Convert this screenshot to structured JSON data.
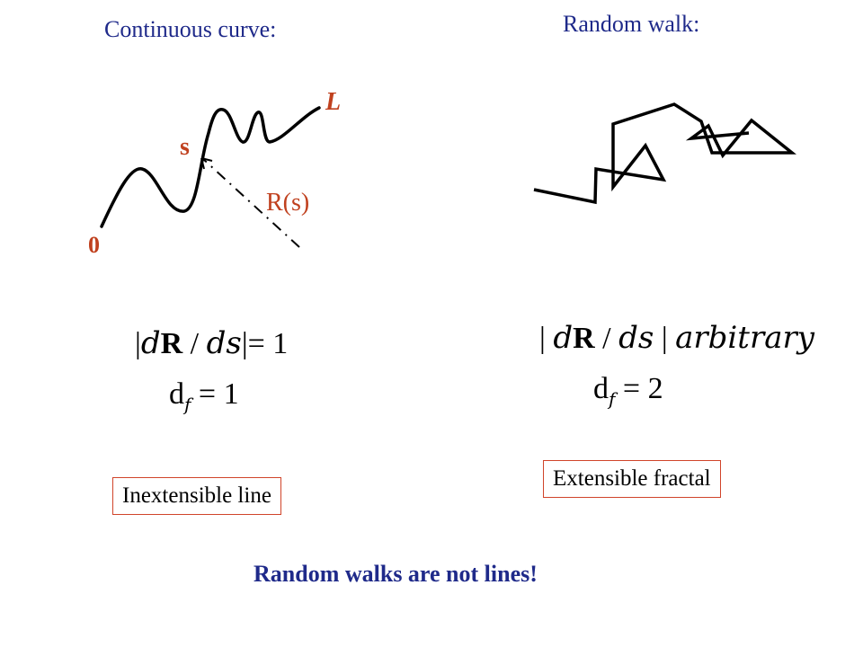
{
  "left": {
    "heading": "Continuous curve:",
    "label_L": "L",
    "label_s": "s",
    "label_R": "R(s)",
    "label_0": "0",
    "formula_1": {
      "bar_open": "|",
      "d": "d",
      "R": "R",
      "slash": "/",
      "ds": "ds",
      "bar_close": "|",
      "eq": "= 1"
    },
    "formula_2": {
      "d": "d",
      "f": "f",
      "eq": "= 1"
    },
    "box": "Inextensible line"
  },
  "right": {
    "heading": "Random walk:",
    "formula_1": {
      "bar_open": "|",
      "d": "d",
      "R": "R",
      "slash": "/",
      "ds": "ds",
      "bar_close": "|",
      "word": "arbitrary"
    },
    "formula_2": {
      "d": "d",
      "f": "f",
      "eq": "= 2"
    },
    "box": "Extensible fractal"
  },
  "conclusion": "Random walks are not lines!",
  "colors": {
    "heading": "#1f2a8a",
    "label": "#c0411f",
    "box_border": "#d0442a",
    "stroke": "#000000"
  }
}
